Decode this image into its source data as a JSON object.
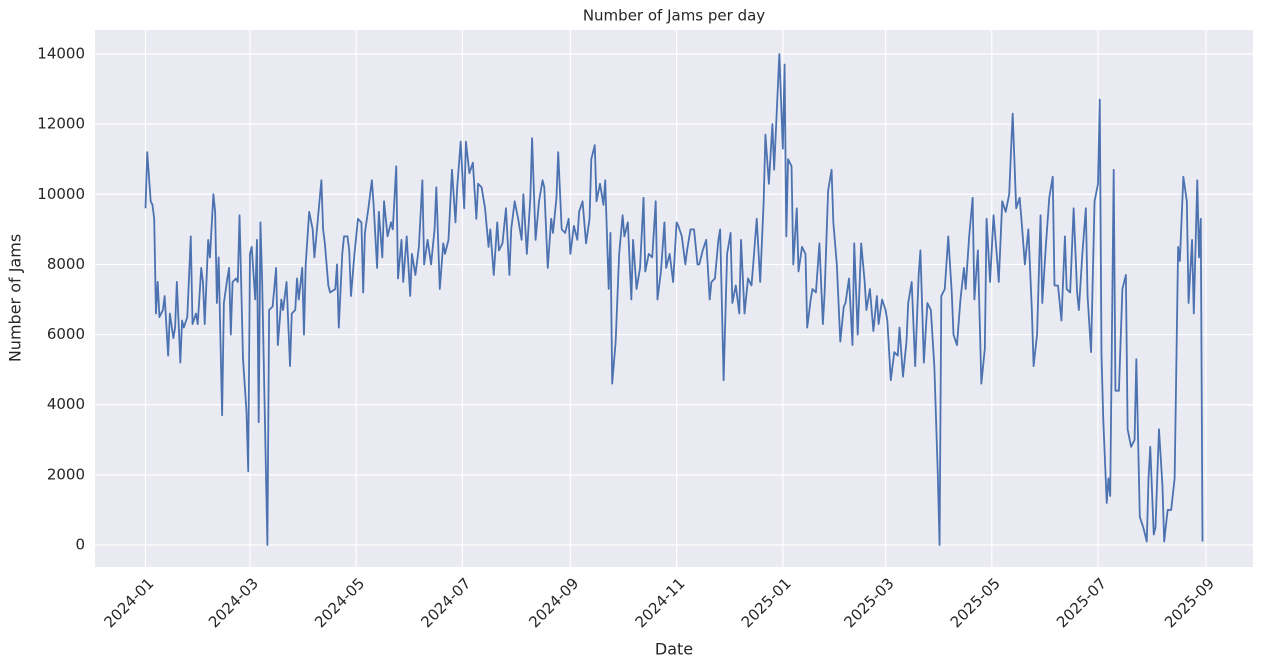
{
  "chart_data": {
    "type": "line",
    "title": "Number of Jams per day",
    "x_label": "Date",
    "y_label": "Number of Jams",
    "x": [
      0,
      1,
      3,
      4,
      5,
      6,
      7,
      8,
      10,
      11,
      13,
      14,
      16,
      17,
      18,
      20,
      21,
      22,
      24,
      26,
      27,
      29,
      30,
      32,
      33,
      34,
      36,
      37,
      39,
      40,
      41,
      42,
      44,
      45,
      47,
      48,
      49,
      50,
      52,
      53,
      54,
      56,
      58,
      59,
      60,
      61,
      63,
      64,
      65,
      66,
      67,
      70,
      71,
      73,
      75,
      76,
      78,
      79,
      81,
      83,
      84,
      86,
      87,
      88,
      90,
      91,
      92,
      94,
      96,
      97,
      99,
      101,
      102,
      103,
      105,
      106,
      109,
      110,
      111,
      113,
      114,
      116,
      117,
      118,
      120,
      122,
      124,
      125,
      126,
      128,
      130,
      131,
      133,
      134,
      136,
      137,
      139,
      141,
      142,
      144,
      145,
      147,
      148,
      150,
      152,
      153,
      155,
      157,
      159,
      160,
      162,
      164,
      166,
      167,
      169,
      171,
      172,
      174,
      176,
      178,
      179,
      181,
      183,
      184,
      186,
      188,
      190,
      191,
      193,
      195,
      197,
      198,
      200,
      202,
      203,
      205,
      207,
      209,
      210,
      212,
      214,
      216,
      217,
      219,
      221,
      222,
      224,
      226,
      228,
      229,
      231,
      233,
      234,
      236,
      237,
      239,
      241,
      243,
      244,
      246,
      248,
      249,
      251,
      253,
      255,
      256,
      258,
      259,
      261,
      263,
      264,
      266,
      267,
      268,
      270,
      272,
      274,
      275,
      277,
      279,
      280,
      282,
      284,
      286,
      287,
      289,
      291,
      293,
      294,
      296,
      298,
      299,
      301,
      303,
      305,
      306,
      308,
      310,
      311,
      313,
      315,
      317,
      318,
      320,
      322,
      324,
      325,
      327,
      329,
      330,
      332,
      334,
      336,
      337,
      339,
      341,
      342,
      344,
      346,
      348,
      349,
      351,
      353,
      355,
      356,
      358,
      360,
      361,
      363,
      364,
      366,
      367,
      368,
      369,
      371,
      372,
      374,
      375,
      377,
      379,
      380,
      382,
      383,
      385,
      387,
      389,
      390,
      392,
      394,
      395,
      397,
      399,
      401,
      402,
      404,
      406,
      407,
      409,
      411,
      413,
      414,
      416,
      418,
      420,
      421,
      423,
      425,
      426,
      428,
      430,
      432,
      433,
      435,
      437,
      438,
      440,
      442,
      444,
      445,
      447,
      449,
      451,
      453,
      455,
      456,
      457,
      459,
      461,
      463,
      464,
      466,
      468,
      470,
      471,
      473,
      475,
      476,
      478,
      480,
      482,
      483,
      485,
      487,
      489,
      490,
      492,
      494,
      496,
      497,
      498,
      500,
      502,
      503,
      505,
      507,
      509,
      510,
      512,
      514,
      515,
      517,
      519,
      521,
      522,
      524,
      526,
      528,
      529,
      531,
      533,
      535,
      536,
      538,
      540,
      541,
      543,
      545,
      547,
      548,
      549,
      550,
      552,
      553,
      554,
      556,
      557,
      559,
      561,
      563,
      564,
      566,
      568,
      569,
      571,
      573,
      575,
      576,
      577,
      579,
      580,
      582,
      584,
      585,
      587,
      589,
      591,
      593,
      594,
      596,
      598,
      599,
      601,
      602,
      604,
      605,
      606,
      607
    ],
    "series": [
      {
        "name": "Number of Jams",
        "color": "#4c72b0",
        "values": [
          9600,
          11200,
          9800,
          9700,
          9300,
          6600,
          7500,
          6500,
          6700,
          7100,
          5400,
          6600,
          5900,
          6200,
          7500,
          5200,
          6400,
          6200,
          6500,
          8800,
          6300,
          6600,
          6300,
          7900,
          7500,
          6300,
          8700,
          8200,
          10000,
          9500,
          6900,
          8200,
          3700,
          6900,
          7600,
          7900,
          6000,
          7500,
          7600,
          7500,
          9400,
          5300,
          3800,
          2100,
          8300,
          8500,
          7000,
          8700,
          3500,
          9200,
          7500,
          0,
          6700,
          6800,
          7900,
          5700,
          7000,
          6700,
          7500,
          5100,
          6600,
          6700,
          7600,
          7000,
          7900,
          6000,
          8000,
          9500,
          9000,
          8200,
          9300,
          10400,
          9000,
          8600,
          7400,
          7200,
          7300,
          8000,
          6200,
          8300,
          8800,
          8800,
          8400,
          7100,
          8300,
          9300,
          9200,
          7200,
          8900,
          9600,
          10400,
          9700,
          7900,
          9500,
          8200,
          9800,
          8800,
          9200,
          9000,
          10800,
          7600,
          8700,
          7500,
          8800,
          7100,
          8300,
          7700,
          8500,
          10400,
          8000,
          8700,
          8000,
          9000,
          10200,
          7300,
          8600,
          8300,
          8700,
          10700,
          9200,
          10200,
          11500,
          9600,
          11500,
          10600,
          10900,
          9300,
          10300,
          10200,
          9600,
          8500,
          9000,
          7700,
          9200,
          8400,
          8600,
          9600,
          7700,
          9000,
          9800,
          9300,
          8700,
          10000,
          8300,
          9900,
          11600,
          8700,
          9800,
          10400,
          10200,
          7900,
          9300,
          8900,
          9900,
          11200,
          9000,
          8900,
          9300,
          8300,
          9100,
          8700,
          9500,
          9800,
          8600,
          9300,
          11000,
          11400,
          9800,
          10300,
          9700,
          10400,
          7300,
          8900,
          4600,
          5800,
          8300,
          9400,
          8800,
          9200,
          7000,
          8700,
          7300,
          7900,
          9900,
          7800,
          8300,
          8200,
          9800,
          7000,
          7800,
          9200,
          7900,
          8300,
          7500,
          9200,
          9100,
          8800,
          8000,
          8400,
          9000,
          9000,
          8000,
          8000,
          8400,
          8700,
          7000,
          7500,
          7600,
          8700,
          9000,
          4700,
          8300,
          8900,
          6900,
          7400,
          6600,
          8700,
          6600,
          7600,
          7400,
          8000,
          9300,
          7500,
          9800,
          11700,
          10300,
          12000,
          10700,
          12900,
          14000,
          11300,
          13700,
          8800,
          11000,
          10800,
          8000,
          9600,
          7800,
          8500,
          8300,
          6200,
          7000,
          7300,
          7200,
          8600,
          6300,
          7200,
          10100,
          10700,
          9200,
          8000,
          5800,
          6800,
          6900,
          7600,
          5700,
          8600,
          6000,
          8600,
          7500,
          6700,
          7300,
          6100,
          7100,
          6300,
          7000,
          6700,
          6400,
          4700,
          5500,
          5400,
          6200,
          4800,
          5800,
          6900,
          7500,
          5100,
          7700,
          8400,
          5200,
          6900,
          6700,
          5100,
          2000,
          0,
          7100,
          7300,
          8800,
          7200,
          6000,
          5700,
          7000,
          7900,
          7300,
          8800,
          9900,
          7000,
          8400,
          4600,
          5600,
          9300,
          7500,
          9400,
          8200,
          7500,
          9800,
          9500,
          10000,
          11200,
          12300,
          9600,
          9900,
          9300,
          8000,
          9000,
          6700,
          5100,
          6000,
          9400,
          6900,
          8500,
          9900,
          10500,
          7400,
          7400,
          6400,
          8800,
          7300,
          7200,
          9600,
          7200,
          6700,
          8300,
          9600,
          7100,
          5500,
          9800,
          10300,
          12700,
          5400,
          3600,
          1200,
          1900,
          1400,
          10700,
          4400,
          4400,
          7300,
          7700,
          3300,
          2800,
          3000,
          5300,
          800,
          500,
          100,
          1900,
          2800,
          300,
          500,
          3300,
          1700,
          100,
          1000,
          1000,
          1900,
          8500,
          8100,
          10500,
          9800,
          6900,
          8700,
          6600,
          10400,
          8200,
          9300,
          100
        ]
      }
    ],
    "xlim": [
      -29,
      636
    ],
    "xticks": [
      {
        "value": 0,
        "label": "2024-01"
      },
      {
        "value": 60,
        "label": "2024-03"
      },
      {
        "value": 121,
        "label": "2024-05"
      },
      {
        "value": 182,
        "label": "2024-07"
      },
      {
        "value": 244,
        "label": "2024-09"
      },
      {
        "value": 305,
        "label": "2024-11"
      },
      {
        "value": 366,
        "label": "2025-01"
      },
      {
        "value": 425,
        "label": "2025-03"
      },
      {
        "value": 486,
        "label": "2025-05"
      },
      {
        "value": 547,
        "label": "2025-07"
      },
      {
        "value": 609,
        "label": "2025-09"
      }
    ],
    "ylim": [
      -627,
      14684
    ],
    "yticks": [
      0,
      2000,
      4000,
      6000,
      8000,
      10000,
      12000,
      14000
    ],
    "grid": true,
    "background": "#eaeaf2"
  }
}
